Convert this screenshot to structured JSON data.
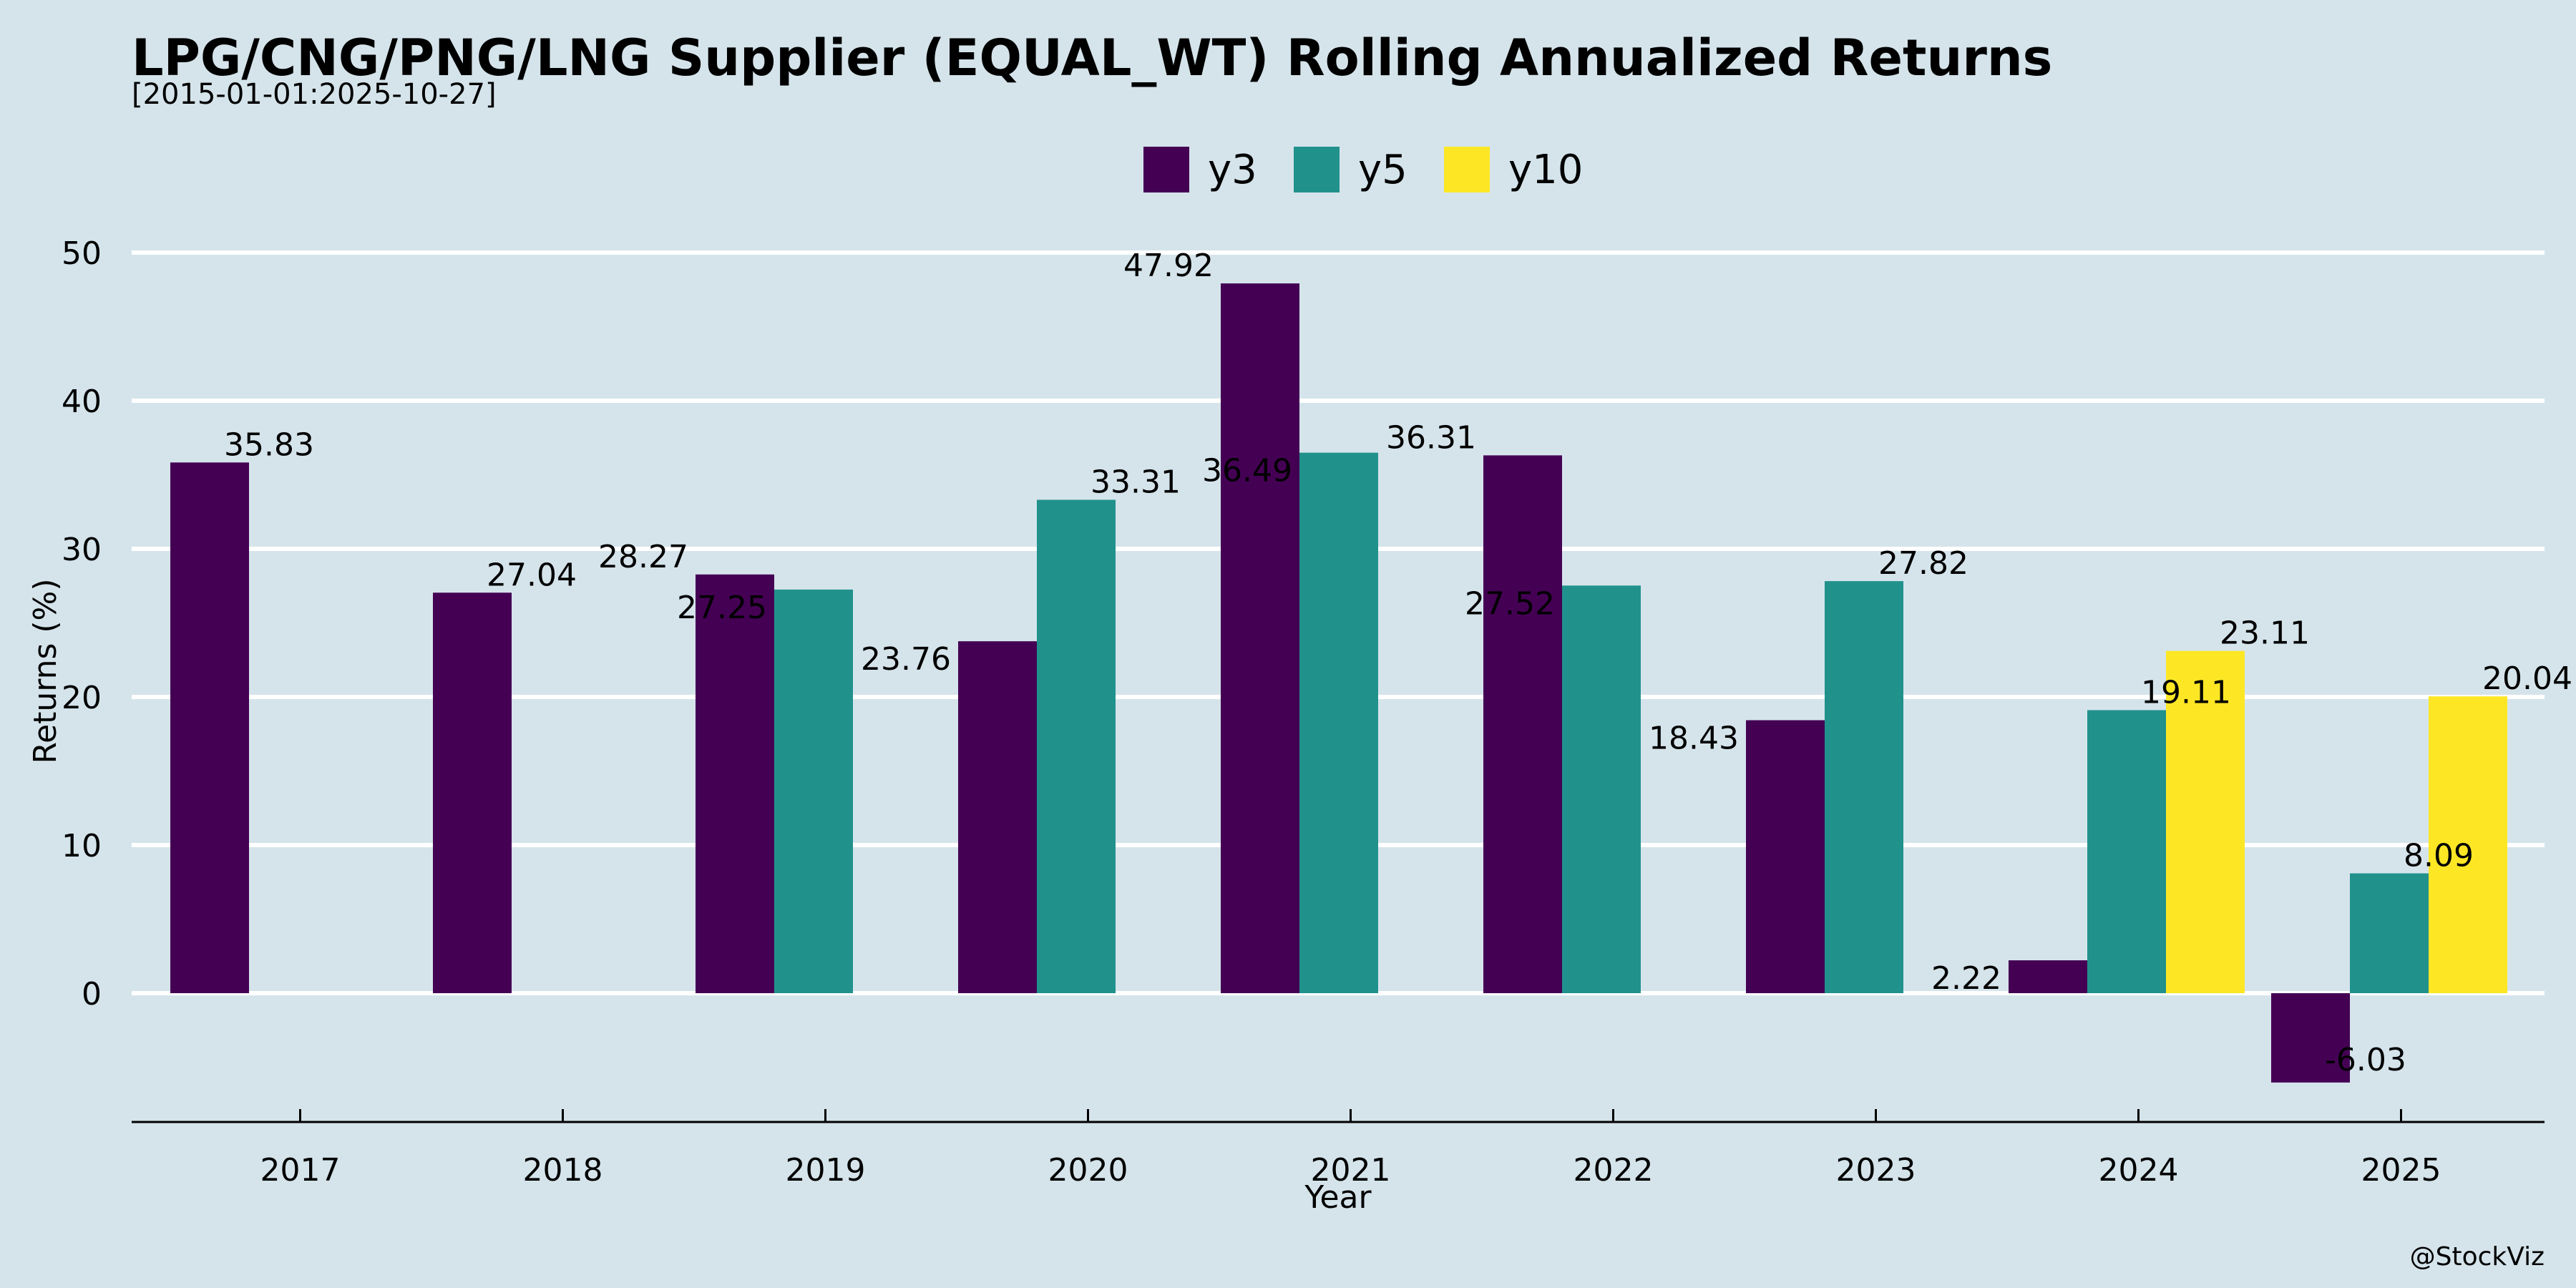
{
  "chart_data": {
    "type": "bar",
    "title": "LPG/CNG/PNG/LNG Supplier (EQUAL_WT) Rolling Annualized Returns",
    "subtitle": "[2015-01-01:2025-10-27]",
    "xlabel": "Year",
    "ylabel": "Returns (%)",
    "categories": [
      "2017",
      "2018",
      "2019",
      "2020",
      "2021",
      "2022",
      "2023",
      "2024",
      "2025"
    ],
    "series": [
      {
        "name": "y3",
        "color": "#440154",
        "values": [
          35.83,
          27.04,
          28.27,
          23.76,
          47.92,
          36.31,
          18.43,
          2.22,
          -6.03
        ]
      },
      {
        "name": "y5",
        "color": "#21918c",
        "values": [
          null,
          null,
          27.25,
          33.31,
          36.49,
          27.52,
          27.82,
          19.11,
          8.09
        ]
      },
      {
        "name": "y10",
        "color": "#fde725",
        "values": [
          null,
          null,
          null,
          null,
          null,
          null,
          null,
          23.11,
          20.04
        ]
      }
    ],
    "ylim": [
      -8.8,
      50
    ],
    "yticks": [
      0,
      10,
      20,
      30,
      40,
      50
    ],
    "grid": true,
    "legend_position": "top-center",
    "gridline_color": "#ffffff",
    "background_color": "#d5e4eb"
  },
  "credit": "@StockViz"
}
